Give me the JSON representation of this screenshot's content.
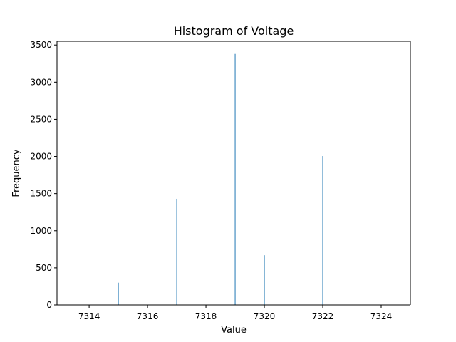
{
  "chart_data": {
    "type": "bar",
    "title": "Histogram of Voltage",
    "xlabel": "Value",
    "ylabel": "Frequency",
    "xlim": [
      7312.9,
      7325.0
    ],
    "ylim": [
      0,
      3550
    ],
    "xticks": [
      7314,
      7316,
      7318,
      7320,
      7322,
      7324
    ],
    "yticks": [
      0,
      500,
      1000,
      1500,
      2000,
      2500,
      3000,
      3500
    ],
    "bars": [
      {
        "x": 7315,
        "value": 300
      },
      {
        "x": 7317,
        "value": 1430
      },
      {
        "x": 7319,
        "value": 3380
      },
      {
        "x": 7320,
        "value": 670
      },
      {
        "x": 7322,
        "value": 2005
      }
    ],
    "bar_color": "#1f77b4",
    "grid": false,
    "legend": "none"
  }
}
